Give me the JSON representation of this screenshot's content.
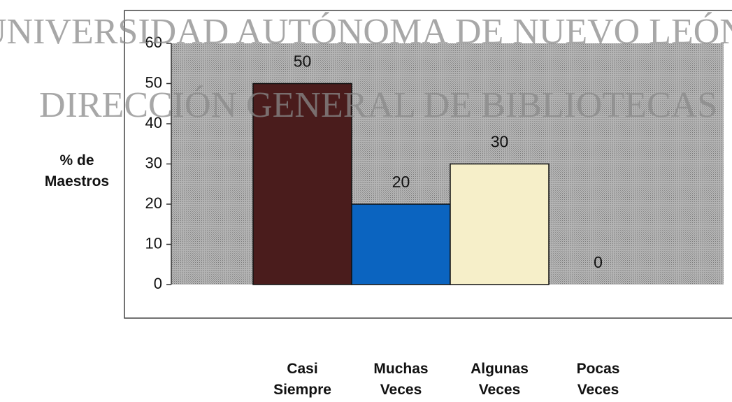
{
  "chart_data": {
    "type": "bar",
    "ylabel": "% de Maestros",
    "categories": [
      "Casi Siempre",
      "Muchas Veces",
      "Algunas Veces",
      "Pocas Veces"
    ],
    "values": [
      50,
      20,
      30,
      0
    ],
    "colors": [
      "#4a1c1c",
      "#0b64c0",
      "#f6efc9",
      "#f6efc9"
    ],
    "ylim": [
      0,
      60
    ],
    "yticks": [
      0,
      10,
      20,
      30,
      40,
      50,
      60
    ],
    "grid": false,
    "annotations": [
      "UNIVERSIDAD AUTÓNOMA DE NUEVO LEÓN",
      "DIRECCIÓN GENERAL DE BIBLIOTECAS"
    ]
  }
}
